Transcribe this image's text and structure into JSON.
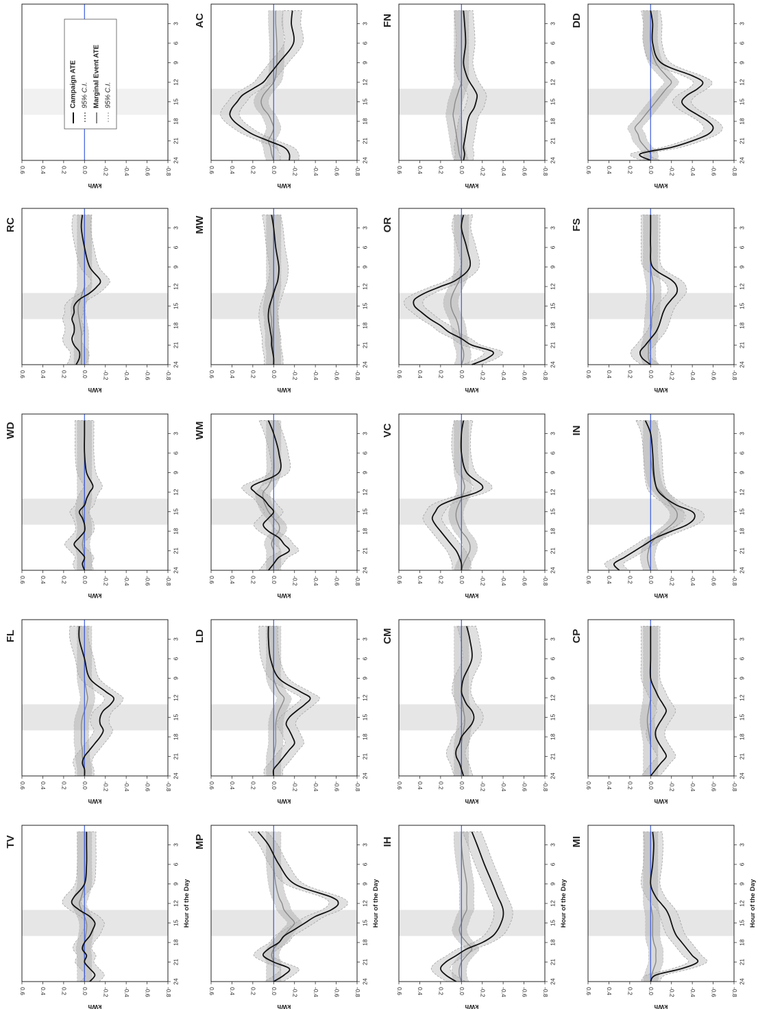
{
  "figure": {
    "axis_label": "kWh",
    "x_label": "Hour of the Day",
    "x_ticks": [
      "3",
      "6",
      "9",
      "12",
      "15",
      "18",
      "21",
      "24"
    ],
    "y_ticks": [
      "0.6",
      "0.4",
      "0.2",
      "0.0",
      "-0.2",
      "-0.4",
      "-0.6",
      "-0.8"
    ],
    "legend": [
      {
        "label": "Campaign ATE",
        "style": "solid-black"
      },
      {
        "label": "95% C.I.",
        "style": "dotted-black"
      },
      {
        "label": "Marginal Event ATE",
        "style": "solid-gray"
      },
      {
        "label": "95% C.I.",
        "style": "dotted-gray"
      }
    ]
  },
  "chart_data": {
    "type": "line",
    "orientation": "rotated 90 degrees clockwise (hour axis runs top-to-bottom)",
    "xlim": [
      0,
      24
    ],
    "ylim": [
      -0.8,
      0.6
    ],
    "event_window": [
      13,
      17
    ],
    "grid": false,
    "colors": {
      "campaign": "#111111",
      "marginal": "#8a8a8a",
      "zero_line": "#3b5bdb",
      "ci_outer": "#d6d6d6",
      "ci_inner": "#a8a8a8"
    },
    "x": [
      1,
      3,
      6,
      9,
      11,
      12,
      13,
      14,
      15,
      16,
      17,
      18,
      19,
      20,
      21,
      22,
      23,
      24
    ],
    "panels": [
      {
        "label": "",
        "legend_panel": true
      },
      {
        "label": "AC",
        "campaign": [
          -0.18,
          -0.17,
          -0.19,
          -0.05,
          0.05,
          0.1,
          0.2,
          0.3,
          0.35,
          0.4,
          0.42,
          0.38,
          0.3,
          0.2,
          0.05,
          -0.1,
          -0.15,
          -0.15
        ],
        "marginal": [
          -0.02,
          -0.02,
          -0.03,
          -0.03,
          -0.02,
          0.0,
          0.05,
          0.1,
          0.12,
          0.1,
          0.05,
          0.02,
          0.0,
          0.02,
          0.05,
          0.03,
          0.02,
          0.0
        ]
      },
      {
        "label": "FN",
        "campaign": [
          -0.02,
          -0.03,
          -0.04,
          -0.02,
          -0.05,
          -0.08,
          -0.12,
          -0.15,
          -0.14,
          -0.12,
          -0.08,
          -0.06,
          -0.05,
          -0.04,
          -0.03,
          -0.02,
          -0.03,
          -0.02
        ],
        "marginal": [
          0.0,
          0.0,
          0.0,
          0.0,
          0.0,
          0.0,
          0.02,
          0.04,
          0.06,
          0.07,
          0.08,
          0.07,
          0.06,
          0.05,
          0.04,
          0.03,
          0.02,
          0.0
        ]
      },
      {
        "label": "DD",
        "campaign": [
          0.0,
          -0.02,
          -0.02,
          -0.1,
          -0.4,
          -0.5,
          -0.45,
          -0.35,
          -0.3,
          -0.35,
          -0.45,
          -0.55,
          -0.6,
          -0.55,
          -0.4,
          -0.2,
          0.1,
          0.0
        ],
        "marginal": [
          0.0,
          0.0,
          0.0,
          -0.05,
          -0.15,
          -0.2,
          -0.15,
          -0.1,
          -0.05,
          0.0,
          0.05,
          0.1,
          0.15,
          0.12,
          0.1,
          0.05,
          0.0,
          0.0
        ]
      },
      {
        "label": "RC",
        "campaign": [
          0.02,
          0.03,
          0.0,
          -0.05,
          -0.15,
          -0.12,
          -0.05,
          0.05,
          0.1,
          0.1,
          0.12,
          0.1,
          0.1,
          0.12,
          0.1,
          0.05,
          0.05,
          0.08
        ],
        "marginal": [
          0.0,
          0.0,
          0.0,
          0.0,
          0.0,
          0.0,
          0.02,
          0.04,
          0.06,
          0.06,
          0.05,
          0.04,
          0.03,
          0.03,
          0.03,
          0.03,
          0.03,
          0.03
        ]
      },
      {
        "label": "MW",
        "campaign": [
          0.02,
          0.0,
          -0.02,
          -0.05,
          -0.04,
          -0.02,
          0.0,
          0.02,
          0.04,
          0.05,
          0.05,
          0.04,
          0.03,
          0.02,
          0.02,
          0.01,
          0.0,
          0.0
        ],
        "marginal": [
          0.0,
          0.0,
          0.0,
          0.0,
          0.0,
          0.0,
          0.01,
          0.02,
          0.03,
          0.03,
          0.02,
          0.02,
          0.01,
          0.01,
          0.01,
          0.0,
          0.0,
          0.0
        ]
      },
      {
        "label": "OR",
        "campaign": [
          -0.02,
          0.0,
          -0.05,
          -0.08,
          0.05,
          0.2,
          0.35,
          0.45,
          0.45,
          0.38,
          0.3,
          0.2,
          0.12,
          0.0,
          -0.1,
          -0.3,
          -0.25,
          -0.1
        ],
        "marginal": [
          0.0,
          0.0,
          0.0,
          0.0,
          0.02,
          0.05,
          0.08,
          0.1,
          0.1,
          0.08,
          0.05,
          0.03,
          0.02,
          0.01,
          0.0,
          -0.02,
          -0.02,
          0.0
        ]
      },
      {
        "label": "FS",
        "campaign": [
          0.0,
          0.0,
          0.0,
          -0.02,
          -0.2,
          -0.25,
          -0.25,
          -0.2,
          -0.15,
          -0.12,
          -0.1,
          -0.08,
          -0.05,
          0.0,
          0.05,
          0.1,
          0.08,
          0.0
        ],
        "marginal": [
          0.0,
          0.0,
          0.0,
          0.0,
          -0.02,
          -0.03,
          -0.03,
          -0.03,
          -0.02,
          -0.02,
          -0.01,
          -0.01,
          0.0,
          0.0,
          0.02,
          0.02,
          0.02,
          0.0
        ]
      },
      {
        "label": "WD",
        "campaign": [
          0.0,
          0.0,
          0.0,
          -0.02,
          -0.08,
          -0.05,
          -0.02,
          0.0,
          0.05,
          0.02,
          0.0,
          0.0,
          0.05,
          0.1,
          0.05,
          0.0,
          0.02,
          0.0
        ],
        "marginal": [
          0.0,
          0.0,
          0.0,
          0.0,
          0.0,
          0.0,
          0.0,
          0.01,
          0.02,
          0.01,
          0.0,
          0.0,
          0.01,
          0.02,
          0.01,
          0.0,
          0.0,
          0.0
        ]
      },
      {
        "label": "WM",
        "campaign": [
          0.05,
          0.0,
          -0.05,
          -0.05,
          0.2,
          0.18,
          0.1,
          0.05,
          0.0,
          0.05,
          0.1,
          0.05,
          -0.05,
          -0.1,
          -0.15,
          -0.05,
          0.0,
          0.05
        ],
        "marginal": [
          0.0,
          0.0,
          0.0,
          0.0,
          0.05,
          0.1,
          0.1,
          0.08,
          0.05,
          0.0,
          -0.05,
          -0.05,
          0.0,
          0.02,
          0.0,
          0.0,
          0.0,
          0.0
        ]
      },
      {
        "label": "VC",
        "campaign": [
          -0.02,
          0.0,
          0.0,
          -0.05,
          -0.2,
          -0.15,
          0.05,
          0.2,
          0.25,
          0.28,
          0.25,
          0.2,
          0.15,
          0.1,
          0.05,
          0.02,
          0.0,
          0.0
        ],
        "marginal": [
          0.0,
          0.0,
          0.0,
          0.0,
          -0.03,
          -0.02,
          0.0,
          0.03,
          0.05,
          0.05,
          0.03,
          0.0,
          -0.05,
          -0.08,
          -0.08,
          -0.05,
          -0.02,
          0.0
        ]
      },
      {
        "label": "IN",
        "campaign": [
          0.05,
          0.0,
          -0.02,
          -0.03,
          -0.05,
          -0.08,
          -0.15,
          -0.25,
          -0.4,
          -0.42,
          -0.35,
          -0.2,
          -0.05,
          0.05,
          0.15,
          0.25,
          0.35,
          0.3
        ],
        "marginal": [
          0.0,
          0.0,
          0.0,
          -0.02,
          -0.05,
          -0.1,
          -0.15,
          -0.2,
          -0.25,
          -0.25,
          -0.2,
          -0.12,
          -0.05,
          0.0,
          0.02,
          0.03,
          0.02,
          0.0
        ]
      },
      {
        "label": "FL",
        "campaign": [
          0.05,
          0.05,
          0.0,
          -0.05,
          -0.2,
          -0.28,
          -0.25,
          -0.18,
          -0.15,
          -0.15,
          -0.18,
          -0.15,
          -0.1,
          -0.05,
          0.0,
          0.02,
          0.0,
          0.0
        ],
        "marginal": [
          0.0,
          0.0,
          0.0,
          0.0,
          -0.02,
          -0.03,
          -0.02,
          0.0,
          0.02,
          0.03,
          0.03,
          0.03,
          0.03,
          0.02,
          0.02,
          0.01,
          0.0,
          0.0
        ]
      },
      {
        "label": "LD",
        "campaign": [
          0.05,
          0.05,
          0.03,
          -0.05,
          -0.25,
          -0.35,
          -0.3,
          -0.22,
          -0.15,
          -0.12,
          -0.15,
          -0.18,
          -0.2,
          -0.15,
          -0.1,
          -0.05,
          0.0,
          0.0
        ],
        "marginal": [
          0.0,
          0.0,
          0.0,
          0.0,
          -0.05,
          -0.1,
          -0.08,
          -0.05,
          -0.03,
          -0.02,
          -0.02,
          -0.02,
          -0.02,
          -0.01,
          0.0,
          0.0,
          0.0,
          0.0
        ]
      },
      {
        "label": "CM",
        "campaign": [
          -0.05,
          -0.08,
          -0.1,
          -0.02,
          0.0,
          -0.02,
          -0.05,
          -0.1,
          -0.12,
          -0.1,
          -0.05,
          0.0,
          0.02,
          0.05,
          0.05,
          0.02,
          0.0,
          -0.02
        ],
        "marginal": [
          0.0,
          0.0,
          0.0,
          0.0,
          0.0,
          0.0,
          -0.01,
          -0.02,
          -0.03,
          -0.03,
          -0.02,
          -0.01,
          0.0,
          0.0,
          0.0,
          0.0,
          0.0,
          0.0
        ]
      },
      {
        "label": "CP",
        "campaign": [
          0.0,
          0.0,
          0.0,
          0.0,
          -0.05,
          -0.08,
          -0.12,
          -0.15,
          -0.12,
          -0.08,
          -0.05,
          -0.05,
          -0.08,
          -0.12,
          -0.15,
          -0.1,
          -0.05,
          0.0
        ],
        "marginal": [
          0.0,
          0.0,
          0.0,
          0.0,
          0.0,
          0.0,
          0.01,
          0.02,
          0.03,
          0.03,
          0.02,
          0.01,
          0.0,
          0.0,
          0.0,
          0.0,
          0.0,
          0.0
        ]
      },
      {
        "label": "TV",
        "campaign": [
          -0.02,
          -0.02,
          -0.02,
          0.0,
          0.1,
          0.12,
          0.05,
          -0.05,
          -0.1,
          -0.08,
          -0.05,
          0.0,
          0.02,
          -0.02,
          0.0,
          -0.05,
          -0.1,
          -0.05
        ],
        "marginal": [
          0.0,
          0.0,
          0.0,
          0.0,
          0.03,
          0.05,
          0.03,
          0.0,
          -0.02,
          -0.02,
          -0.01,
          0.0,
          0.01,
          0.0,
          0.0,
          0.0,
          0.0,
          0.0
        ]
      },
      {
        "label": "MP",
        "campaign": [
          0.15,
          0.05,
          -0.05,
          -0.2,
          -0.55,
          -0.62,
          -0.55,
          -0.4,
          -0.3,
          -0.2,
          -0.1,
          -0.05,
          0.05,
          0.1,
          0.0,
          -0.15,
          -0.1,
          0.0
        ],
        "marginal": [
          0.0,
          0.0,
          0.0,
          -0.02,
          -0.05,
          -0.08,
          -0.1,
          -0.15,
          -0.2,
          -0.15,
          -0.1,
          -0.05,
          0.0,
          0.02,
          0.0,
          0.0,
          0.0,
          0.0
        ]
      },
      {
        "label": "IH",
        "campaign": [
          -0.1,
          -0.15,
          -0.22,
          -0.3,
          -0.35,
          -0.38,
          -0.4,
          -0.4,
          -0.38,
          -0.35,
          -0.3,
          -0.2,
          -0.05,
          0.05,
          0.15,
          0.2,
          0.15,
          0.05
        ],
        "marginal": [
          0.0,
          0.0,
          -0.02,
          -0.05,
          -0.05,
          -0.05,
          -0.05,
          -0.02,
          0.0,
          0.02,
          0.0,
          -0.05,
          -0.1,
          -0.05,
          0.0,
          0.02,
          0.02,
          0.0
        ]
      },
      {
        "label": "MI",
        "campaign": [
          -0.02,
          -0.03,
          -0.02,
          0.0,
          -0.05,
          -0.1,
          -0.15,
          -0.18,
          -0.2,
          -0.22,
          -0.25,
          -0.3,
          -0.35,
          -0.4,
          -0.45,
          -0.3,
          -0.05,
          0.0
        ],
        "marginal": [
          0.0,
          0.0,
          0.0,
          0.0,
          0.0,
          0.0,
          -0.01,
          -0.02,
          -0.02,
          -0.02,
          -0.02,
          -0.03,
          -0.05,
          -0.05,
          -0.05,
          -0.03,
          -0.01,
          0.0
        ]
      }
    ]
  }
}
